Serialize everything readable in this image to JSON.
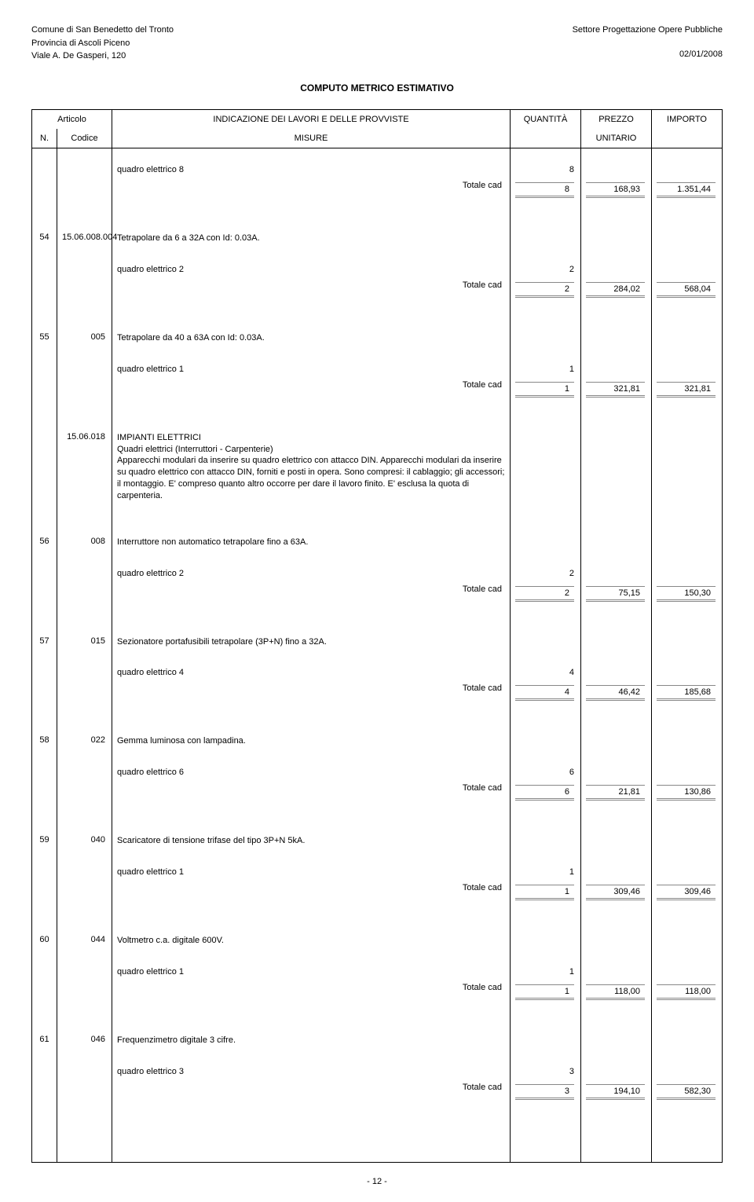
{
  "header": {
    "left1": "Comune di San Benedetto del Tronto",
    "left2": "Provincia di Ascoli Piceno",
    "left3": "Viale A. De Gasperi, 120",
    "right1": "Settore Progettazione Opere Pubbliche",
    "right2": "02/01/2008"
  },
  "title": "COMPUTO METRICO ESTIMATIVO",
  "columns": {
    "articolo": "Articolo",
    "n": "N.",
    "codice": "Codice",
    "indicazione": "INDICAZIONE DEI LAVORI E DELLE PROVVISTE",
    "misure": "MISURE",
    "quantita": "QUANTITÀ",
    "prezzo": "PREZZO",
    "unitario": "UNITARIO",
    "importo": "IMPORTO"
  },
  "totale_label": "Totale cad",
  "rows": [
    {
      "measure_label": "quadro elettrico 8",
      "measure_val": "8",
      "tot_qty": "8",
      "unit_price": "168,93",
      "import": "1.351,44"
    },
    {
      "n": "54",
      "code": "15.06.008.004",
      "desc": "Tetrapolare da 6 a 32A con Id: 0.03A.",
      "measure_label": "quadro elettrico 2",
      "measure_val": "2",
      "tot_qty": "2",
      "unit_price": "284,02",
      "import": "568,04"
    },
    {
      "n": "55",
      "code": "005",
      "desc": "Tetrapolare da 40 a 63A con Id: 0.03A.",
      "measure_label": "quadro elettrico 1",
      "measure_val": "1",
      "tot_qty": "1",
      "unit_price": "321,81",
      "import": "321,81"
    },
    {
      "code": "15.06.018",
      "desc": "IMPIANTI ELETTRICI\nQuadri elettrici (Interruttori - Carpenterie)\nApparecchi modulari da inserire su quadro elettrico con attacco DIN. Apparecchi modulari da inserire su quadro elettrico con attacco DIN, forniti e posti in opera. Sono compresi: il cablaggio; gli accessori; il montaggio. E' compreso quanto altro occorre per dare il lavoro finito. E' esclusa la quota di carpenteria."
    },
    {
      "n": "56",
      "code": "008",
      "desc": "Interruttore non automatico tetrapolare fino a 63A.",
      "measure_label": "quadro elettrico 2",
      "measure_val": "2",
      "tot_qty": "2",
      "unit_price": "75,15",
      "import": "150,30"
    },
    {
      "n": "57",
      "code": "015",
      "desc": "Sezionatore portafusibili tetrapolare (3P+N) fino a 32A.",
      "measure_label": "quadro elettrico 4",
      "measure_val": "4",
      "tot_qty": "4",
      "unit_price": "46,42",
      "import": "185,68"
    },
    {
      "n": "58",
      "code": "022",
      "desc": "Gemma luminosa con lampadina.",
      "measure_label": "quadro elettrico 6",
      "measure_val": "6",
      "tot_qty": "6",
      "unit_price": "21,81",
      "import": "130,86"
    },
    {
      "n": "59",
      "code": "040",
      "desc": "Scaricatore di tensione trifase del tipo 3P+N 5kA.",
      "measure_label": "quadro elettrico 1",
      "measure_val": "1",
      "tot_qty": "1",
      "unit_price": "309,46",
      "import": "309,46"
    },
    {
      "n": "60",
      "code": "044",
      "desc": "Voltmetro c.a. digitale 600V.",
      "measure_label": "quadro elettrico 1",
      "measure_val": "1",
      "tot_qty": "1",
      "unit_price": "118,00",
      "import": "118,00"
    },
    {
      "n": "61",
      "code": "046",
      "desc": "Frequenzimetro digitale 3 cifre.",
      "measure_label": "quadro elettrico 3",
      "measure_val": "3",
      "tot_qty": "3",
      "unit_price": "194,10",
      "import": "582,30"
    }
  ],
  "footer": "-   12   -"
}
